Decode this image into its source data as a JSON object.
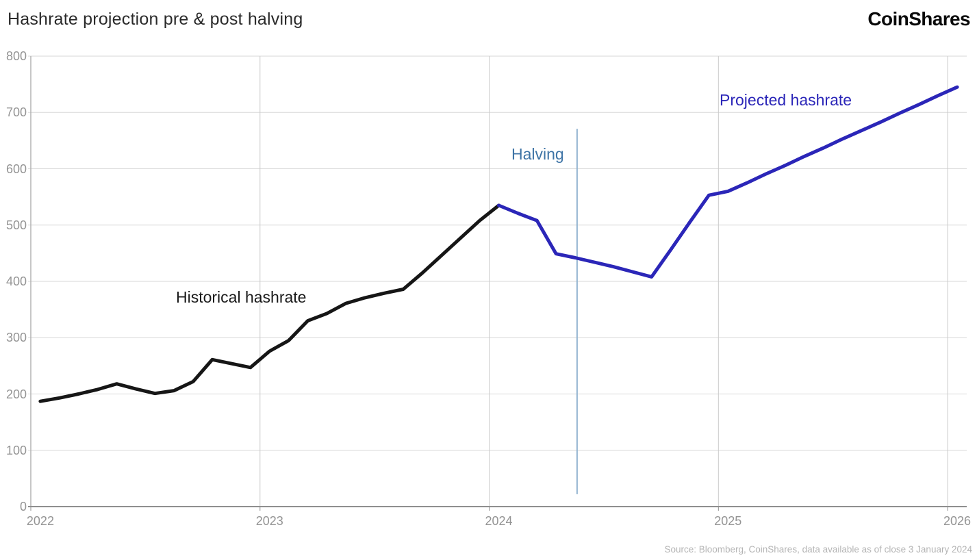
{
  "header": {
    "title": "Hashrate projection pre & post halving",
    "logo": "CoinShares"
  },
  "footer": {
    "source": "Source: Bloomberg, CoinShares, data available as of close 3 January 2024"
  },
  "colors": {
    "historical_line": "#161616",
    "projected_line": "#2b26b8",
    "halving_line": "#93b4d0",
    "halving_label": "#3e74a6",
    "gridline": "#d7d7d7",
    "year_gridline": "#cbcbcb",
    "bottom_axis": "#8f8f8f",
    "left_axis": "#b3b3b3",
    "tick_text": "#949494",
    "title_text": "#2b2b2b",
    "source_text": "#b4b4b4"
  },
  "chart_data": {
    "type": "line",
    "title": "Hashrate projection pre & post halving",
    "xlabel": "",
    "ylabel": "",
    "ylim": [
      0,
      800
    ],
    "y_ticks": [
      0,
      100,
      200,
      300,
      400,
      500,
      600,
      700,
      800
    ],
    "x_tick_labels": [
      "2022",
      "2023",
      "2024",
      "2025",
      "2026"
    ],
    "x_tick_indices": [
      0,
      12,
      24,
      36,
      48
    ],
    "year_boundary_indices": [
      12,
      24,
      36,
      48
    ],
    "grid": {
      "horizontal": true,
      "vertical_at_years": true
    },
    "legend": "inline-labels",
    "categories": [
      "2022-01",
      "2022-02",
      "2022-03",
      "2022-04",
      "2022-05",
      "2022-06",
      "2022-07",
      "2022-08",
      "2022-09",
      "2022-10",
      "2022-11",
      "2022-12",
      "2023-01",
      "2023-02",
      "2023-03",
      "2023-04",
      "2023-05",
      "2023-06",
      "2023-07",
      "2023-08",
      "2023-09",
      "2023-10",
      "2023-11",
      "2023-12",
      "2024-01",
      "2024-02",
      "2024-03",
      "2024-04",
      "2024-05",
      "2024-06",
      "2024-07",
      "2024-08",
      "2024-09",
      "2024-10",
      "2024-11",
      "2024-12",
      "2025-01",
      "2025-02",
      "2025-03",
      "2025-04",
      "2025-05",
      "2025-06",
      "2025-07",
      "2025-08",
      "2025-09",
      "2025-10",
      "2025-11",
      "2025-12",
      "2026-01"
    ],
    "series": [
      {
        "name": "Historical hashrate",
        "color": "#161616",
        "start_index": 0,
        "values": [
          187,
          193,
          200,
          208,
          218,
          209,
          201,
          206,
          222,
          261,
          254,
          247,
          276,
          295,
          330,
          343,
          361,
          371,
          379,
          386,
          415,
          446,
          477,
          508,
          535
        ]
      },
      {
        "name": "Projected hashrate",
        "color": "#2b26b8",
        "start_index": 24,
        "values": [
          535,
          521,
          508,
          449,
          442,
          434,
          426,
          417,
          408,
          456,
          505,
          553,
          560,
          575,
          591,
          606,
          622,
          637,
          653,
          668,
          683,
          699,
          714,
          730,
          745
        ]
      }
    ],
    "annotations": [
      {
        "type": "vline",
        "label": "Halving",
        "x_index": 28.1,
        "y_from": 22,
        "y_to": 671,
        "line_color": "#93b4d0",
        "label_color": "#3e74a6"
      }
    ]
  }
}
